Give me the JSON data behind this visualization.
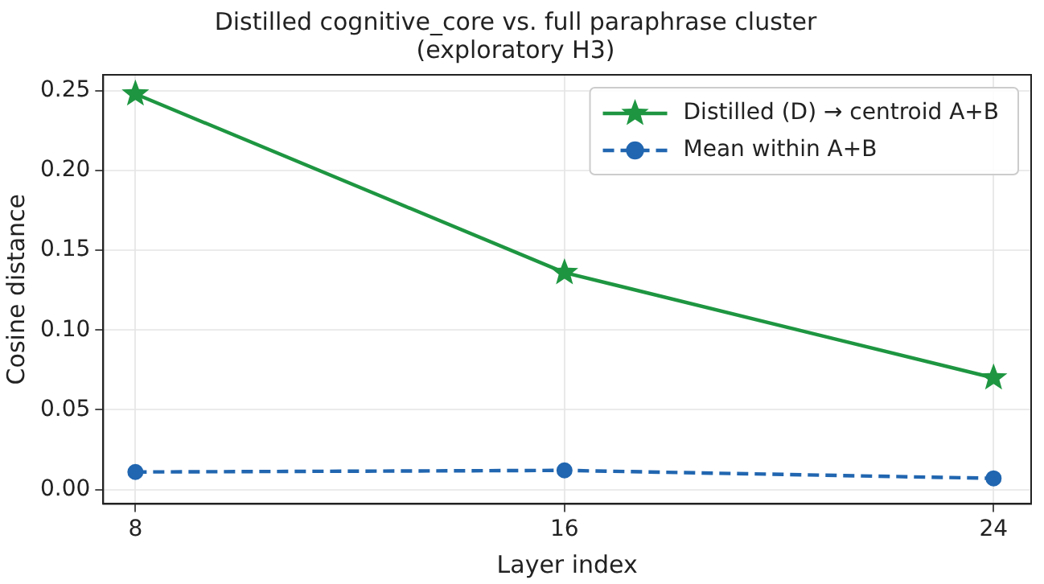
{
  "chart_data": {
    "type": "line",
    "title": "Distilled cognitive_core vs. full paraphrase cluster\n(exploratory H3)",
    "xlabel": "Layer index",
    "ylabel": "Cosine distance",
    "x": [
      8,
      16,
      24
    ],
    "series": [
      {
        "name": "Distilled (D) → centroid A+B",
        "color": "#1e9641",
        "values": [
          0.248,
          0.136,
          0.07
        ],
        "marker": "star",
        "line_style": "solid"
      },
      {
        "name": "Mean within A+B",
        "color": "#2166b0",
        "values": [
          0.011,
          0.012,
          0.007
        ],
        "marker": "circle",
        "line_style": "dashed"
      }
    ],
    "xlim": [
      7.4,
      24.7
    ],
    "xticks": [
      8,
      16,
      24
    ],
    "ylim": [
      -0.009,
      0.26
    ],
    "yticks": [
      {
        "value": 0,
        "label": "0.00"
      },
      {
        "value": 0.05,
        "label": "0.05"
      },
      {
        "value": 0.1,
        "label": "0.10"
      },
      {
        "value": 0.15,
        "label": "0.15"
      },
      {
        "value": 0.2,
        "label": "0.20"
      },
      {
        "value": 0.25,
        "label": "0.25"
      }
    ],
    "grid": true,
    "legend": "top right"
  }
}
